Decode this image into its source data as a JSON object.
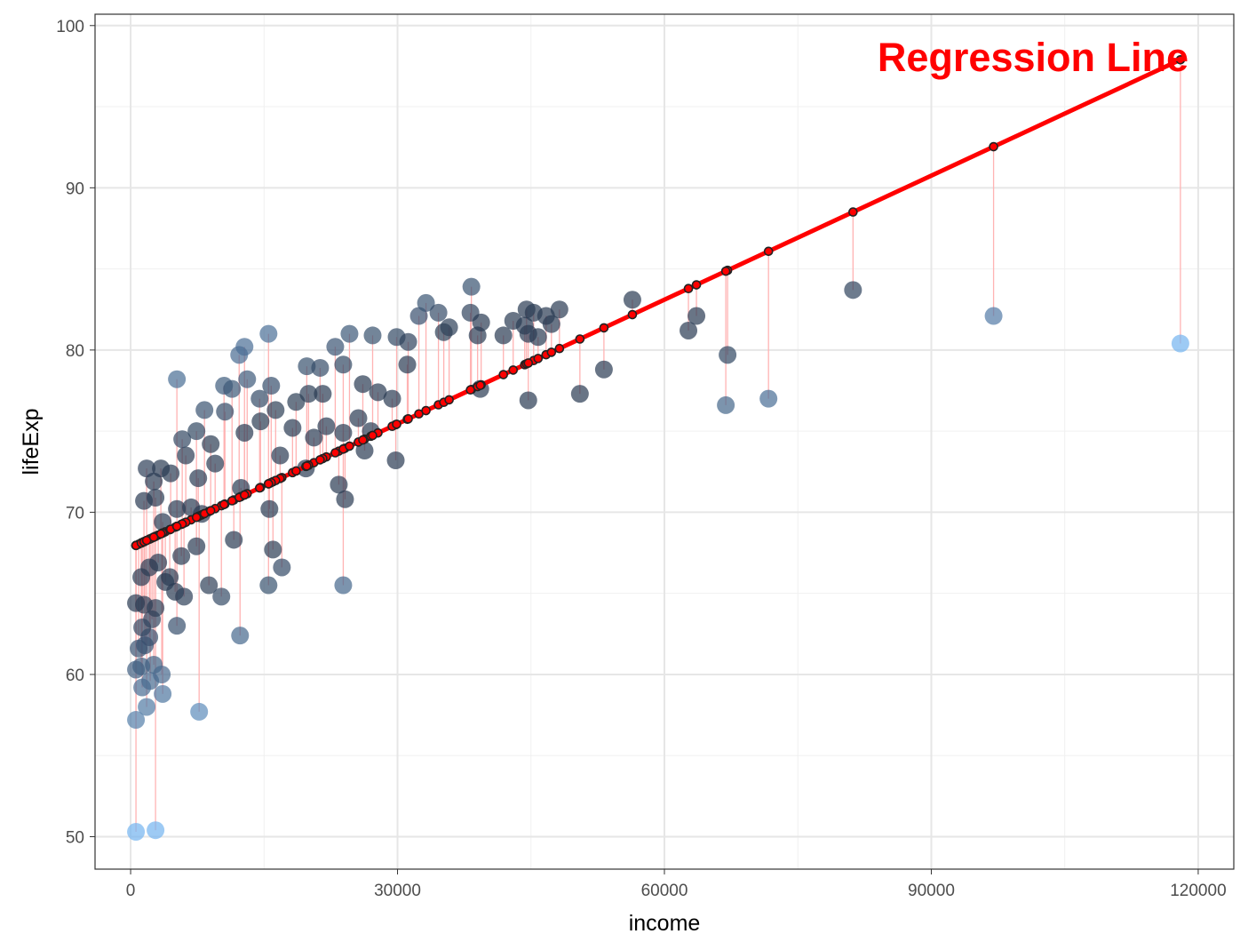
{
  "chart_data": {
    "type": "scatter",
    "title": "",
    "xlabel": "income",
    "ylabel": "lifeExp",
    "xlim": [
      -4000,
      124000
    ],
    "ylim": [
      48,
      100.7
    ],
    "x_ticks": [
      0,
      30000,
      60000,
      90000,
      120000
    ],
    "x_tick_labels": [
      "0",
      "30000",
      "60000",
      "90000",
      "120000"
    ],
    "y_ticks": [
      50,
      60,
      70,
      80,
      90,
      100
    ],
    "y_tick_labels": [
      "50",
      "60",
      "70",
      "80",
      "90",
      "100"
    ],
    "grid": true,
    "annotation": "Regression Line",
    "colors": {
      "annotation": "#ff0000",
      "regression_line": "#ff0000",
      "residual_segments": "#ffb3b3",
      "points_low_residual": "#2a3b52",
      "points_high_residual": "#74b3ef",
      "fitted_points": "#222222"
    },
    "regression": {
      "intercept": 67.8,
      "slope": 0.000255
    },
    "series": [
      {
        "values": [
          {
            "x": 600,
            "y": 50.3
          },
          {
            "x": 2800,
            "y": 50.4
          },
          {
            "x": 600,
            "y": 57.2
          },
          {
            "x": 7700,
            "y": 57.7
          },
          {
            "x": 1800,
            "y": 58.0
          },
          {
            "x": 3600,
            "y": 58.8
          },
          {
            "x": 1300,
            "y": 59.2
          },
          {
            "x": 2200,
            "y": 59.6
          },
          {
            "x": 600,
            "y": 60.3
          },
          {
            "x": 1200,
            "y": 60.5
          },
          {
            "x": 2600,
            "y": 60.6
          },
          {
            "x": 3500,
            "y": 60.0
          },
          {
            "x": 900,
            "y": 61.6
          },
          {
            "x": 1600,
            "y": 61.8
          },
          {
            "x": 2100,
            "y": 62.3
          },
          {
            "x": 1300,
            "y": 62.9
          },
          {
            "x": 2400,
            "y": 63.4
          },
          {
            "x": 5200,
            "y": 63.0
          },
          {
            "x": 12300,
            "y": 62.4
          },
          {
            "x": 600,
            "y": 64.4
          },
          {
            "x": 1500,
            "y": 64.3
          },
          {
            "x": 2800,
            "y": 64.1
          },
          {
            "x": 3900,
            "y": 65.7
          },
          {
            "x": 5000,
            "y": 65.1
          },
          {
            "x": 6000,
            "y": 64.8
          },
          {
            "x": 8800,
            "y": 65.5
          },
          {
            "x": 10200,
            "y": 64.8
          },
          {
            "x": 15500,
            "y": 65.5
          },
          {
            "x": 17000,
            "y": 66.6
          },
          {
            "x": 23900,
            "y": 65.5
          },
          {
            "x": 1200,
            "y": 66.0
          },
          {
            "x": 2100,
            "y": 66.6
          },
          {
            "x": 3100,
            "y": 66.9
          },
          {
            "x": 4400,
            "y": 66.0
          },
          {
            "x": 5700,
            "y": 67.3
          },
          {
            "x": 7400,
            "y": 67.9
          },
          {
            "x": 16000,
            "y": 67.7
          },
          {
            "x": 1500,
            "y": 70.7
          },
          {
            "x": 2800,
            "y": 70.9
          },
          {
            "x": 3600,
            "y": 69.4
          },
          {
            "x": 5200,
            "y": 70.2
          },
          {
            "x": 6800,
            "y": 70.3
          },
          {
            "x": 8000,
            "y": 69.9
          },
          {
            "x": 11600,
            "y": 68.3
          },
          {
            "x": 15600,
            "y": 70.2
          },
          {
            "x": 24100,
            "y": 70.8
          },
          {
            "x": 1800,
            "y": 72.7
          },
          {
            "x": 2600,
            "y": 71.9
          },
          {
            "x": 3400,
            "y": 72.7
          },
          {
            "x": 4500,
            "y": 72.4
          },
          {
            "x": 6200,
            "y": 73.5
          },
          {
            "x": 7600,
            "y": 72.1
          },
          {
            "x": 9500,
            "y": 73.0
          },
          {
            "x": 12400,
            "y": 71.5
          },
          {
            "x": 16800,
            "y": 73.5
          },
          {
            "x": 19700,
            "y": 72.7
          },
          {
            "x": 23400,
            "y": 71.7
          },
          {
            "x": 26300,
            "y": 73.8
          },
          {
            "x": 29800,
            "y": 73.2
          },
          {
            "x": 5800,
            "y": 74.5
          },
          {
            "x": 7400,
            "y": 75.0
          },
          {
            "x": 8300,
            "y": 76.3
          },
          {
            "x": 9000,
            "y": 74.2
          },
          {
            "x": 10600,
            "y": 76.2
          },
          {
            "x": 12800,
            "y": 74.9
          },
          {
            "x": 14600,
            "y": 75.6
          },
          {
            "x": 16300,
            "y": 76.3
          },
          {
            "x": 18200,
            "y": 75.2
          },
          {
            "x": 20600,
            "y": 74.6
          },
          {
            "x": 22000,
            "y": 75.3
          },
          {
            "x": 23900,
            "y": 74.9
          },
          {
            "x": 25600,
            "y": 75.8
          },
          {
            "x": 27000,
            "y": 75.0
          },
          {
            "x": 5200,
            "y": 78.2
          },
          {
            "x": 10500,
            "y": 77.8
          },
          {
            "x": 11400,
            "y": 77.6
          },
          {
            "x": 12200,
            "y": 79.7
          },
          {
            "x": 13100,
            "y": 78.2
          },
          {
            "x": 14500,
            "y": 77.0
          },
          {
            "x": 15800,
            "y": 77.8
          },
          {
            "x": 18600,
            "y": 76.8
          },
          {
            "x": 20000,
            "y": 77.3
          },
          {
            "x": 21600,
            "y": 77.3
          },
          {
            "x": 23900,
            "y": 79.1
          },
          {
            "x": 26100,
            "y": 77.9
          },
          {
            "x": 27800,
            "y": 77.4
          },
          {
            "x": 29400,
            "y": 77.0
          },
          {
            "x": 31100,
            "y": 79.1
          },
          {
            "x": 12800,
            "y": 80.2
          },
          {
            "x": 15500,
            "y": 81.0
          },
          {
            "x": 19800,
            "y": 79.0
          },
          {
            "x": 21300,
            "y": 78.9
          },
          {
            "x": 23000,
            "y": 80.2
          },
          {
            "x": 24600,
            "y": 81.0
          },
          {
            "x": 27200,
            "y": 80.9
          },
          {
            "x": 29900,
            "y": 80.8
          },
          {
            "x": 31200,
            "y": 80.5
          },
          {
            "x": 32400,
            "y": 82.1
          },
          {
            "x": 33200,
            "y": 82.9
          },
          {
            "x": 34600,
            "y": 82.3
          },
          {
            "x": 35200,
            "y": 81.1
          },
          {
            "x": 35800,
            "y": 81.4
          },
          {
            "x": 38300,
            "y": 83.9
          },
          {
            "x": 38200,
            "y": 82.3
          },
          {
            "x": 39000,
            "y": 80.9
          },
          {
            "x": 39400,
            "y": 81.7
          },
          {
            "x": 39300,
            "y": 77.6
          },
          {
            "x": 41900,
            "y": 80.9
          },
          {
            "x": 43000,
            "y": 81.8
          },
          {
            "x": 44300,
            "y": 81.5
          },
          {
            "x": 44500,
            "y": 82.5
          },
          {
            "x": 44700,
            "y": 81.0
          },
          {
            "x": 45300,
            "y": 82.3
          },
          {
            "x": 45800,
            "y": 80.8
          },
          {
            "x": 46700,
            "y": 82.1
          },
          {
            "x": 47300,
            "y": 81.6
          },
          {
            "x": 48200,
            "y": 82.5
          },
          {
            "x": 44700,
            "y": 76.9
          },
          {
            "x": 50500,
            "y": 77.3
          },
          {
            "x": 53200,
            "y": 78.8
          },
          {
            "x": 56400,
            "y": 83.1
          },
          {
            "x": 62700,
            "y": 81.2
          },
          {
            "x": 63600,
            "y": 82.1
          },
          {
            "x": 67100,
            "y": 79.7
          },
          {
            "x": 66900,
            "y": 76.6
          },
          {
            "x": 71700,
            "y": 77.0
          },
          {
            "x": 81200,
            "y": 83.7
          },
          {
            "x": 97000,
            "y": 82.1
          },
          {
            "x": 118000,
            "y": 80.4
          }
        ]
      }
    ]
  }
}
